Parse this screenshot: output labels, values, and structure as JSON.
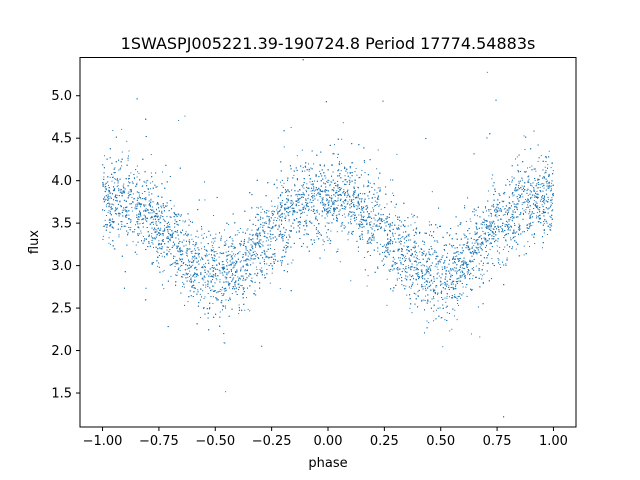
{
  "chart_data": {
    "type": "scatter",
    "title": "1SWASPJ005221.39-190724.8 Period 17774.54883s",
    "xlabel": "phase",
    "ylabel": "flux",
    "xlim": [
      -1.1,
      1.1
    ],
    "ylim": [
      1.1,
      5.45
    ],
    "xticks": [
      "−1.00",
      "−0.75",
      "−0.50",
      "−0.25",
      "0.00",
      "0.25",
      "0.50",
      "0.75",
      "1.00"
    ],
    "xtick_values": [
      -1.0,
      -0.75,
      -0.5,
      -0.25,
      0.0,
      0.25,
      0.5,
      0.75,
      1.0
    ],
    "yticks": [
      "1.5",
      "2.0",
      "2.5",
      "3.0",
      "3.5",
      "4.0",
      "4.5",
      "5.0"
    ],
    "ytick_values": [
      1.5,
      2.0,
      2.5,
      3.0,
      3.5,
      4.0,
      4.5,
      5.0
    ],
    "grid": false,
    "series": [
      {
        "color": "#1f77b4",
        "marker": "point",
        "x": [
          -1.0,
          -0.9,
          -0.8,
          -0.7,
          -0.6,
          -0.5,
          -0.45,
          -0.4,
          -0.3,
          -0.2,
          -0.1,
          0.0,
          0.05,
          0.1,
          0.2,
          0.3,
          0.4,
          0.5,
          0.55,
          0.6,
          0.7,
          0.8,
          0.9,
          1.0
        ],
        "y": [
          3.8,
          3.75,
          3.6,
          3.35,
          3.05,
          2.9,
          2.9,
          2.95,
          3.25,
          3.55,
          3.75,
          3.8,
          3.8,
          3.75,
          3.55,
          3.25,
          2.95,
          2.9,
          2.9,
          3.05,
          3.35,
          3.6,
          3.75,
          3.8
        ],
        "scatter_sigma": 0.25
      }
    ]
  }
}
